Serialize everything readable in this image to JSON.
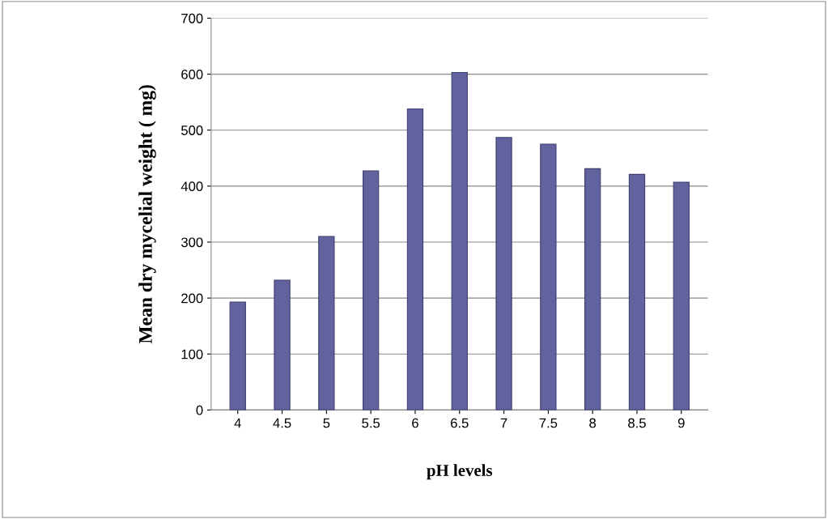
{
  "chart_data": {
    "type": "bar",
    "xlabel": "pH levels",
    "ylabel": "Mean dry mycelial weight ( mg)",
    "categories": [
      "4",
      "4.5",
      "5",
      "5.5",
      "6",
      "6.5",
      "7",
      "7.5",
      "8",
      "8.5",
      "9"
    ],
    "values": [
      193,
      232,
      310,
      427,
      538,
      603,
      487,
      475,
      431,
      421,
      407
    ],
    "color": "#62629e",
    "ylim": [
      0,
      700
    ],
    "yticks": [
      0,
      100,
      200,
      300,
      400,
      500,
      600,
      700
    ],
    "grid": "y"
  }
}
